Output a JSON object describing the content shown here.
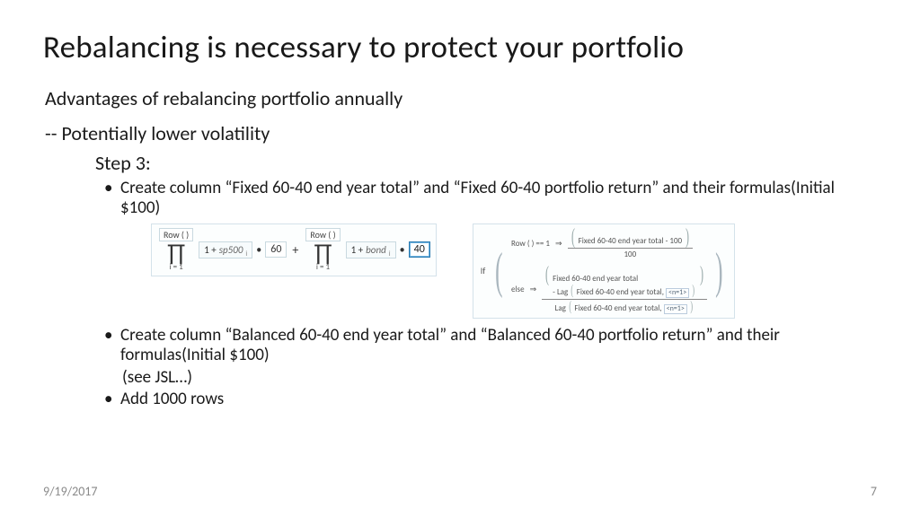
{
  "title": "Rebalancing is necessary to protect your portfolio",
  "subtitle": "Advantages of rebalancing portfolio annually",
  "line1": "-- Potentially lower volatility",
  "step_label": "Step 3:",
  "bullet1": "Create column “Fixed 60-40 end year total” and “Fixed 60-40 portfolio return” and their formulas(Initial $100)",
  "bullet2": "Create column “Balanced 60-40 end year total” and “Balanced 60-40 portfolio return” and their formulas(Initial $100)",
  "see_jsl": "(see JSL…)",
  "bullet3": "Add 1000 rows",
  "formula1": {
    "row_label": "Row ( )",
    "i_eq": "i  = 1",
    "one_plus": "1  +",
    "var_a": "sp500",
    "sub": "i",
    "mult": "•",
    "const_a": "60",
    "plus": "+",
    "var_b": "bond",
    "const_b": "40"
  },
  "formula2": {
    "if_label": "If",
    "cond1": "Row ( ) == 1",
    "arrow": "⇒",
    "num1": "Fixed 60-40 end year total - 100",
    "den1": "100",
    "else_label": "else",
    "num2a": "Fixed 60-40 end year total",
    "num2b_prefix": "- Lag",
    "num2b_inner": "Fixed 60-40 end year total,",
    "nbox": "<n=1>",
    "den2_prefix": "Lag",
    "den2_inner": "Fixed 60-40 end year total,"
  },
  "footer": {
    "date": "9/19/2017",
    "page": "7"
  }
}
